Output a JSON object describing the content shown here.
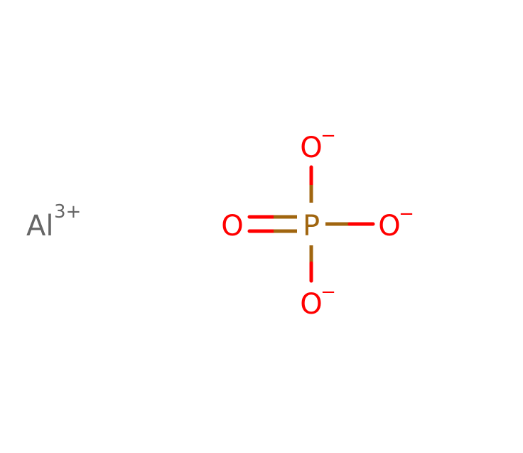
{
  "molecule": {
    "cation": {
      "symbol": "Al",
      "charge": "3+",
      "color": "#666666"
    },
    "phosphate": {
      "phosphorus": {
        "symbol": "P",
        "color": "#A0650F"
      },
      "oxygen_color": "#FF0000",
      "oxygens": [
        {
          "id": "top",
          "symbol": "O",
          "charge": "−"
        },
        {
          "id": "left",
          "symbol": "O",
          "charge": ""
        },
        {
          "id": "right",
          "symbol": "O",
          "charge": "−"
        },
        {
          "id": "bottom",
          "symbol": "O",
          "charge": "−"
        }
      ],
      "bonds": [
        {
          "from": "P",
          "to": "top",
          "order": 1
        },
        {
          "from": "P",
          "to": "left",
          "order": 2
        },
        {
          "from": "P",
          "to": "right",
          "order": 1
        },
        {
          "from": "P",
          "to": "bottom",
          "order": 1
        }
      ]
    }
  }
}
